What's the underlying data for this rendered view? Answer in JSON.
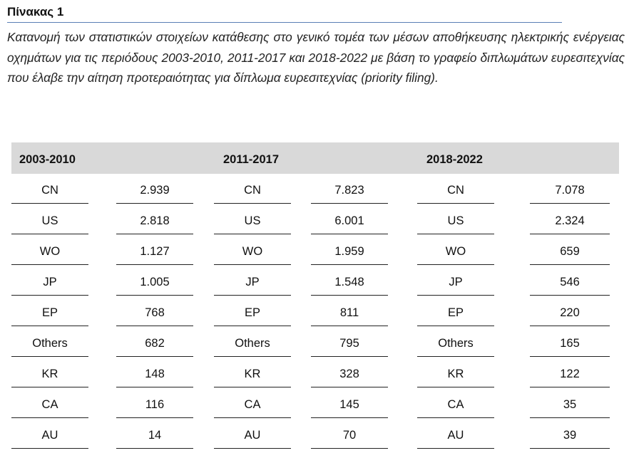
{
  "table_label": "Πίνακας 1",
  "caption": "Κατανομή των στατιστικών στοιχείων κατάθεσης στο γενικό τομέα των μέσων αποθήκευσης ηλεκτρικής ενέργειας οχημάτων για τις περιόδους 2003-2010, 2011-2017 και 2018-2022 με βάση το γραφείο διπλωμάτων ευρεσιτεχνίας που έλαβε την αίτηση προτεραιότητας για δίπλωμα ευρεσιτεχνίας (priority filing).",
  "periods": [
    "2003-2010",
    "2011-2017",
    "2018-2022"
  ],
  "rows": [
    [
      [
        "CN",
        "2.939"
      ],
      [
        "CN",
        "7.823"
      ],
      [
        "CN",
        "7.078"
      ]
    ],
    [
      [
        "US",
        "2.818"
      ],
      [
        "US",
        "6.001"
      ],
      [
        "US",
        "2.324"
      ]
    ],
    [
      [
        "WO",
        "1.127"
      ],
      [
        "WO",
        "1.959"
      ],
      [
        "WO",
        "659"
      ]
    ],
    [
      [
        "JP",
        "1.005"
      ],
      [
        "JP",
        "1.548"
      ],
      [
        "JP",
        "546"
      ]
    ],
    [
      [
        "EP",
        "768"
      ],
      [
        "EP",
        "811"
      ],
      [
        "EP",
        "220"
      ]
    ],
    [
      [
        "Others",
        "682"
      ],
      [
        "Others",
        "795"
      ],
      [
        "Others",
        "165"
      ]
    ],
    [
      [
        "KR",
        "148"
      ],
      [
        "KR",
        "328"
      ],
      [
        "KR",
        "122"
      ]
    ],
    [
      [
        "CA",
        "116"
      ],
      [
        "CA",
        "145"
      ],
      [
        "CA",
        "35"
      ]
    ],
    [
      [
        "AU",
        "14"
      ],
      [
        "AU",
        "70"
      ],
      [
        "AU",
        "39"
      ]
    ]
  ]
}
